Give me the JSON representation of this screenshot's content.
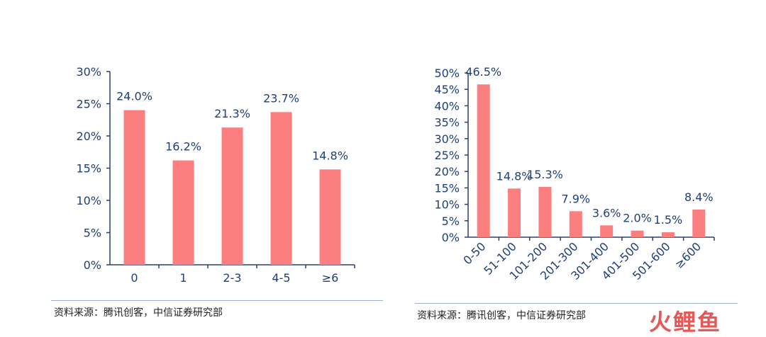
{
  "chart_data": [
    {
      "type": "bar",
      "categories": [
        "0",
        "1",
        "2-3",
        "4-5",
        "≥6"
      ],
      "values": [
        24.0,
        16.2,
        21.3,
        23.7,
        14.8
      ],
      "labels": [
        "24.0%",
        "16.2%",
        "21.3%",
        "23.7%",
        "14.8%"
      ],
      "yticks": [
        "0%",
        "5%",
        "10%",
        "15%",
        "20%",
        "25%",
        "30%"
      ],
      "ylim": [
        0,
        30
      ],
      "grid": false,
      "color": "#fb7f7f"
    },
    {
      "type": "bar",
      "categories": [
        "0-50",
        "51-100",
        "101-200",
        "201-300",
        "301-400",
        "401-500",
        "501-600",
        "≥600"
      ],
      "values": [
        46.5,
        14.8,
        15.3,
        7.9,
        3.6,
        2.0,
        1.5,
        8.4
      ],
      "labels": [
        "46.5%",
        "14.8%",
        "15.3%",
        "7.9%",
        "3.6%",
        "2.0%",
        "1.5%",
        "8.4%"
      ],
      "yticks": [
        "0%",
        "5%",
        "10%",
        "15%",
        "20%",
        "25%",
        "30%",
        "35%",
        "40%",
        "45%",
        "50%"
      ],
      "ylim": [
        0,
        50
      ],
      "grid": false,
      "color": "#fb7f7f"
    }
  ],
  "sources": [
    "资料来源：腾讯创客，中信证券研究部",
    "资料来源：腾讯创客，中信证券研究部"
  ],
  "watermark": "火鲤鱼"
}
